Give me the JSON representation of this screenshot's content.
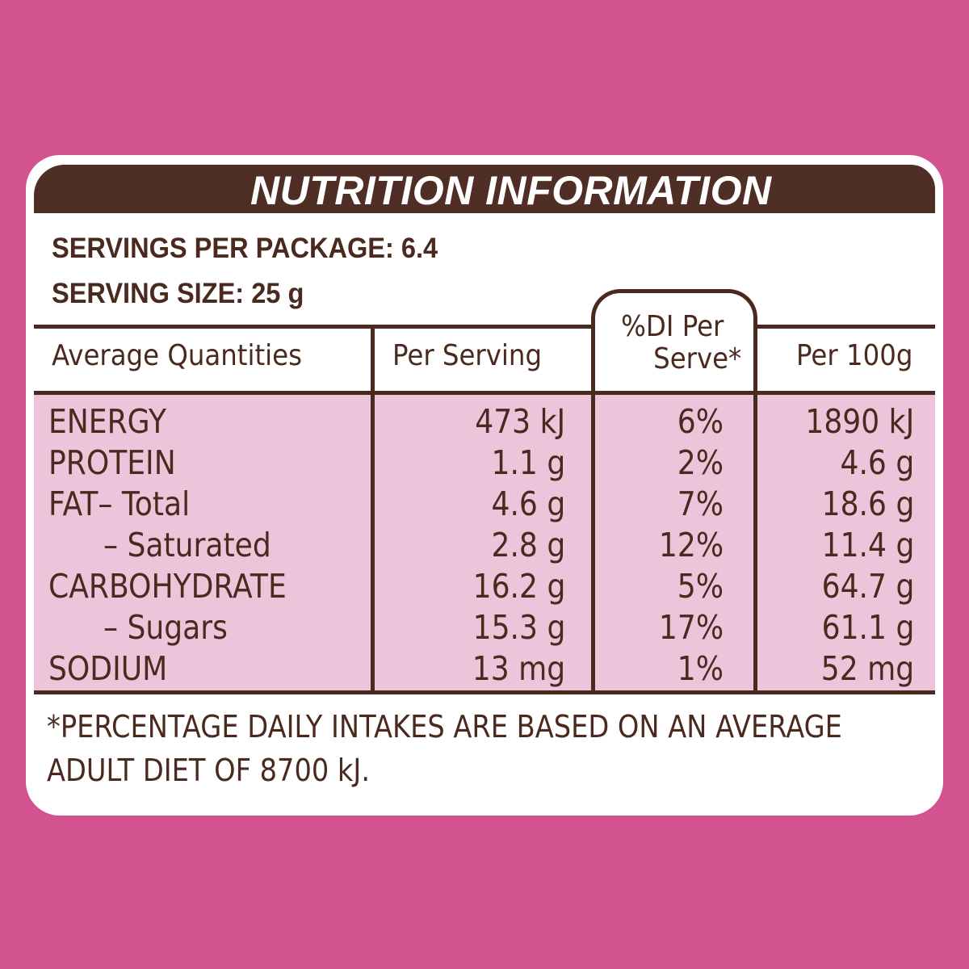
{
  "title": "NUTRITION INFORMATION",
  "servings_per_package": "SERVINGS PER PACKAGE: 6.4",
  "serving_size": "SERVING SIZE: 25 g",
  "columns": {
    "quantities": "Average Quantities",
    "per_serving": "Per Serving",
    "di_line1": "%DI Per",
    "di_line2": "Serve*",
    "per_100g": "Per 100g"
  },
  "rows": [
    {
      "name": "ENERGY",
      "per_serving": "473 kJ",
      "di": "6%",
      "per_100g": "1890 kJ"
    },
    {
      "name": "PROTEIN",
      "per_serving": "1.1 g",
      "di": "2%",
      "per_100g": "4.6 g"
    },
    {
      "name": "FAT– Total",
      "per_serving": "4.6 g",
      "di": "7%",
      "per_100g": "18.6 g"
    },
    {
      "name": "– Saturated",
      "per_serving": "2.8 g",
      "di": "12%",
      "per_100g": "11.4 g"
    },
    {
      "name": "CARBOHYDRATE",
      "per_serving": "16.2 g",
      "di": "5%",
      "per_100g": "64.7 g"
    },
    {
      "name": "– Sugars",
      "per_serving": "15.3 g",
      "di": "17%",
      "per_100g": "61.1 g"
    },
    {
      "name": "SODIUM",
      "per_serving": "13 mg",
      "di": "1%",
      "per_100g": "52 mg"
    }
  ],
  "footnote_line1": "*PERCENTAGE DAILY INTAKES ARE BASED ON AN AVERAGE",
  "footnote_line2": "ADULT DIET OF 8700 kJ.",
  "colors": {
    "background": "#d35391",
    "title_bar": "#4f2e25",
    "text": "#4a2a1f",
    "row_band": "#edc5da"
  }
}
